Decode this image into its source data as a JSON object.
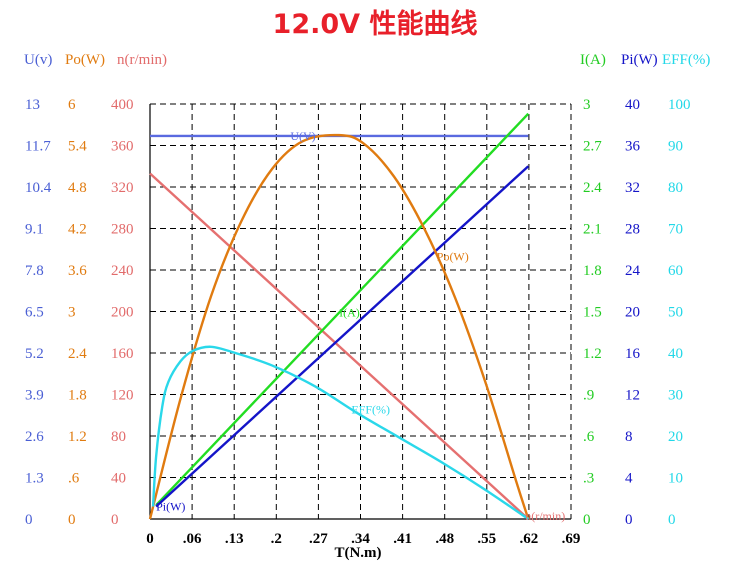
{
  "chart_data": {
    "type": "line",
    "title": "12.0V 性能曲线",
    "xlabel": "T(N.m)",
    "xlim": [
      0,
      0.69
    ],
    "x_ticks": [
      "0",
      ".06",
      ".13",
      ".2",
      ".27",
      ".34",
      ".41",
      ".48",
      ".55",
      ".62",
      ".69"
    ],
    "grid": true,
    "left_axes": [
      {
        "key": "u",
        "label": "U(v)",
        "color": "#4a5fd4",
        "ticks": [
          "0",
          "1.3",
          "2.6",
          "3.9",
          "5.2",
          "6.5",
          "7.8",
          "9.1",
          "10.4",
          "11.7",
          "13"
        ],
        "ylim": [
          0,
          13
        ]
      },
      {
        "key": "po",
        "label": "Po(W)",
        "color": "#e07b10",
        "ticks": [
          "0",
          ".6",
          "1.2",
          "1.8",
          "2.4",
          "3",
          "3.6",
          "4.2",
          "4.8",
          "5.4",
          "6"
        ],
        "ylim": [
          0,
          6
        ]
      },
      {
        "key": "n",
        "label": "n(r/min)",
        "color": "#e26b6b",
        "ticks": [
          "0",
          "40",
          "80",
          "120",
          "160",
          "200",
          "240",
          "280",
          "320",
          "360",
          "400"
        ],
        "ylim": [
          0,
          400
        ]
      }
    ],
    "right_axes": [
      {
        "key": "i",
        "label": "I(A)",
        "color": "#22cc22",
        "ticks": [
          "0",
          ".3",
          ".6",
          ".9",
          "1.2",
          "1.5",
          "1.8",
          "2.1",
          "2.4",
          "2.7",
          "3"
        ],
        "ylim": [
          0,
          3
        ]
      },
      {
        "key": "pi",
        "label": "Pi(W)",
        "color": "#1515c8",
        "ticks": [
          "0",
          "4",
          "8",
          "12",
          "16",
          "20",
          "24",
          "28",
          "32",
          "36",
          "40"
        ],
        "ylim": [
          0,
          40
        ]
      },
      {
        "key": "eff",
        "label": "EFF(%)",
        "color": "#22d8e8",
        "ticks": [
          "0",
          "10",
          "20",
          "30",
          "40",
          "50",
          "60",
          "70",
          "80",
          "90",
          "100"
        ],
        "ylim": [
          0,
          100
        ]
      }
    ],
    "series": [
      {
        "name": "U(V)",
        "axis": "u",
        "color": "#5a6ae0",
        "x": [
          0,
          0.62
        ],
        "y": [
          12.0,
          12.0
        ],
        "label_at": 0.23
      },
      {
        "name": "n(r/min)",
        "axis": "n",
        "color": "#e57070",
        "x": [
          0,
          0.62
        ],
        "y": [
          333,
          0
        ],
        "label_at": 0.615
      },
      {
        "name": "I(A)",
        "axis": "i",
        "color": "#22dd22",
        "x": [
          0.01,
          0.62
        ],
        "y": [
          0.1,
          2.93
        ],
        "label_at": 0.31
      },
      {
        "name": "Pi(W)",
        "axis": "pi",
        "color": "#1414c8",
        "x": [
          0.01,
          0.62
        ],
        "y": [
          1.2,
          34.0
        ],
        "label_at": 0.01
      },
      {
        "name": "Po(W)",
        "axis": "po",
        "color": "#e07b10",
        "x": [
          0,
          0.05,
          0.1,
          0.15,
          0.2,
          0.25,
          0.31,
          0.35,
          0.4,
          0.45,
          0.5,
          0.55,
          0.6,
          0.62
        ],
        "y": [
          0,
          1.74,
          3.22,
          4.31,
          5.06,
          5.46,
          5.55,
          5.43,
          4.95,
          4.19,
          3.2,
          1.97,
          0.55,
          0
        ],
        "label_at": 0.47
      },
      {
        "name": "EFF(%)",
        "axis": "eff",
        "color": "#2ad8ea",
        "x": [
          0.005,
          0.01,
          0.02,
          0.03,
          0.05,
          0.07,
          0.1,
          0.14,
          0.2,
          0.27,
          0.34,
          0.41,
          0.48,
          0.55,
          0.62
        ],
        "y": [
          3,
          15,
          27,
          33,
          38,
          40.5,
          41.5,
          40,
          37,
          32,
          25.5,
          19.5,
          13.5,
          7,
          0
        ],
        "label_at": 0.33
      }
    ]
  }
}
